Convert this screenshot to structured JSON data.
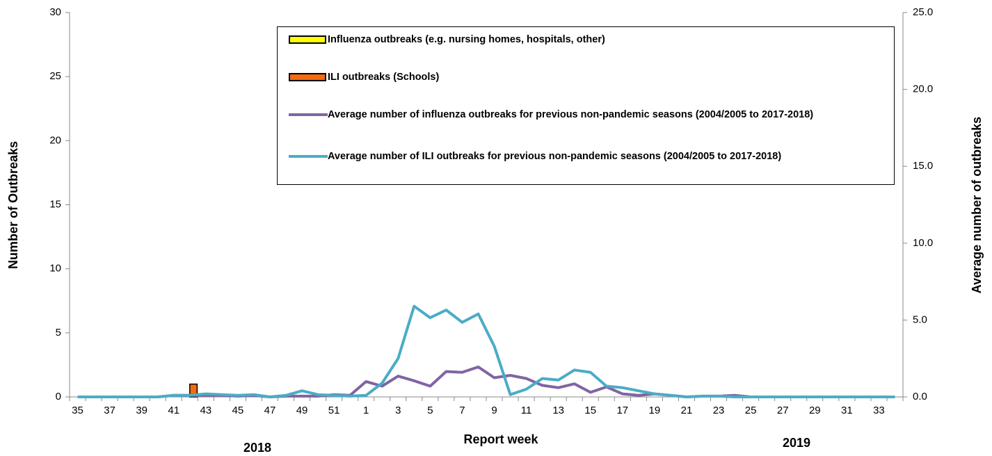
{
  "chart_data": {
    "type": "combo",
    "xlabel": "Report week",
    "ylabel": "Number of Outbreaks",
    "y2label": "Average number of outbreaks",
    "annotations": [
      "2018",
      "2019"
    ],
    "categories": [
      "35",
      null,
      "37",
      null,
      "39",
      null,
      "41",
      null,
      "43",
      null,
      "45",
      null,
      "47",
      null,
      "49",
      null,
      "51",
      null,
      "1",
      null,
      "3",
      null,
      "5",
      null,
      "7",
      null,
      "9",
      null,
      "11",
      null,
      "13",
      null,
      "15",
      null,
      "17",
      null,
      "19",
      null,
      "21",
      null,
      "23",
      null,
      "25",
      null,
      "27",
      null,
      "29",
      null,
      "31",
      null,
      "33",
      null
    ],
    "ylim": [
      0,
      30
    ],
    "yticks": [
      0,
      5,
      10,
      15,
      20,
      25,
      30
    ],
    "y2lim": [
      0,
      25
    ],
    "y2ticks": [
      {
        "value": 0,
        "label": "0.0"
      },
      {
        "value": 5,
        "label": "5.0"
      },
      {
        "value": 10,
        "label": "10.0"
      },
      {
        "value": 15,
        "label": "15.0"
      },
      {
        "value": 20,
        "label": "20.0"
      },
      {
        "value": 25,
        "label": "25.0"
      }
    ],
    "series": [
      {
        "name": "Influenza outbreaks (e.g. nursing homes, hospitals, other)",
        "type": "bar",
        "color": "#ffff00",
        "values": [
          0,
          0,
          0,
          0,
          0,
          0,
          0,
          0,
          null,
          null,
          null,
          null,
          null,
          null,
          null,
          null,
          null,
          null,
          null,
          null,
          null,
          null,
          null,
          null,
          null,
          null,
          null,
          null,
          null,
          null,
          null,
          null,
          null,
          null,
          null,
          null,
          null,
          null,
          null,
          null,
          null,
          null,
          null,
          null,
          null,
          null,
          null,
          null,
          null,
          null,
          null,
          null
        ]
      },
      {
        "name": "ILI outbreaks (Schools)",
        "type": "bar",
        "color": "#f26b10",
        "values": [
          0,
          0,
          0,
          0,
          0,
          0,
          0,
          1,
          null,
          null,
          null,
          null,
          null,
          null,
          null,
          null,
          null,
          null,
          null,
          null,
          null,
          null,
          null,
          null,
          null,
          null,
          null,
          null,
          null,
          null,
          null,
          null,
          null,
          null,
          null,
          null,
          null,
          null,
          null,
          null,
          null,
          null,
          null,
          null,
          null,
          null,
          null,
          null,
          null,
          null,
          null,
          null
        ]
      },
      {
        "name": "Average number of influenza outbreaks for previous non-pandemic seasons (2004/2005 to 2017-2018)",
        "type": "line",
        "axis": "y2",
        "color": "#8064a2",
        "values": [
          0,
          0,
          0,
          0,
          0,
          0,
          0.1,
          0.1,
          0.1,
          0.1,
          0.05,
          0.1,
          0,
          0.05,
          0.05,
          0.05,
          0.15,
          0.1,
          1.0,
          0.7,
          1.35,
          1.05,
          0.7,
          1.65,
          1.6,
          1.95,
          1.25,
          1.4,
          1.2,
          0.75,
          0.6,
          0.85,
          0.3,
          0.65,
          0.2,
          0.1,
          0.2,
          0.1,
          0,
          0.05,
          0.05,
          0.1,
          0,
          0,
          0,
          0,
          0,
          0,
          0,
          0,
          0,
          0
        ]
      },
      {
        "name": "Average number of ILI outbreaks for previous non-pandemic seasons (2004/2005 to 2017-2018)",
        "type": "line",
        "axis": "y2",
        "color": "#4bacc6",
        "values": [
          0,
          0,
          0,
          0,
          0,
          0,
          0.1,
          0.1,
          0.2,
          0.15,
          0.1,
          0.15,
          0,
          0.1,
          0.4,
          0.15,
          0.1,
          0.05,
          0.1,
          0.9,
          2.5,
          5.9,
          5.15,
          5.65,
          4.85,
          5.4,
          3.3,
          0.15,
          0.5,
          1.2,
          1.1,
          1.75,
          1.6,
          0.7,
          0.6,
          0.4,
          0.2,
          0.1,
          0,
          0.05,
          0.05,
          0,
          0,
          0,
          0,
          0,
          0,
          0,
          0,
          0,
          0,
          0
        ]
      }
    ]
  }
}
